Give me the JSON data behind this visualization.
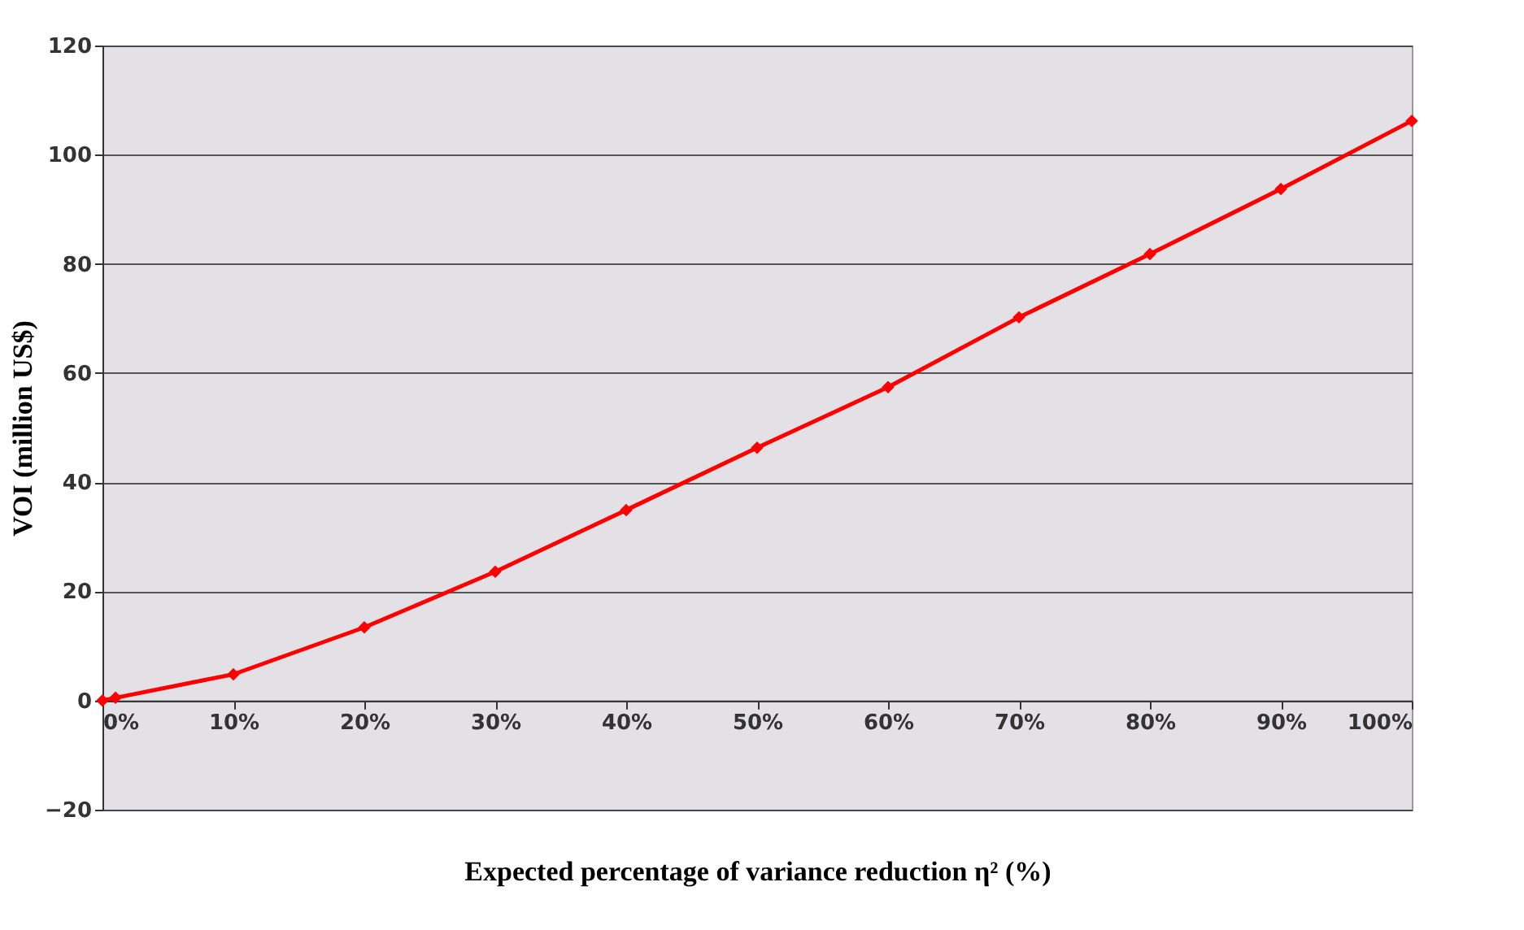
{
  "chart_data": {
    "type": "line",
    "xlabel": "Expected percentage of variance reduction η² (%)",
    "ylabel": "VOI (million US$)",
    "x": [
      0,
      1,
      10,
      20,
      30,
      40,
      50,
      60,
      70,
      80,
      90,
      100
    ],
    "series": [
      {
        "color": "#ff0000",
        "values": [
          0,
          0.5,
          4.8,
          13.4,
          23.6,
          34.9,
          46.3,
          57.4,
          70.2,
          81.8,
          93.7,
          106.2
        ]
      }
    ],
    "xlim": [
      0,
      100
    ],
    "xticks": [
      {
        "value": 0,
        "label": "0%"
      },
      {
        "value": 10,
        "label": "10%"
      },
      {
        "value": 20,
        "label": "20%"
      },
      {
        "value": 30,
        "label": "30%"
      },
      {
        "value": 40,
        "label": "40%"
      },
      {
        "value": 50,
        "label": "50%"
      },
      {
        "value": 60,
        "label": "60%"
      },
      {
        "value": 70,
        "label": "70%"
      },
      {
        "value": 80,
        "label": "80%"
      },
      {
        "value": 90,
        "label": "90%"
      },
      {
        "value": 100,
        "label": "100%"
      }
    ],
    "ylim": [
      -20,
      120
    ],
    "yticks": [
      -20,
      0,
      20,
      40,
      60,
      80,
      100,
      120
    ],
    "grid": "y",
    "marker": "diamond",
    "line_style": "solid"
  }
}
